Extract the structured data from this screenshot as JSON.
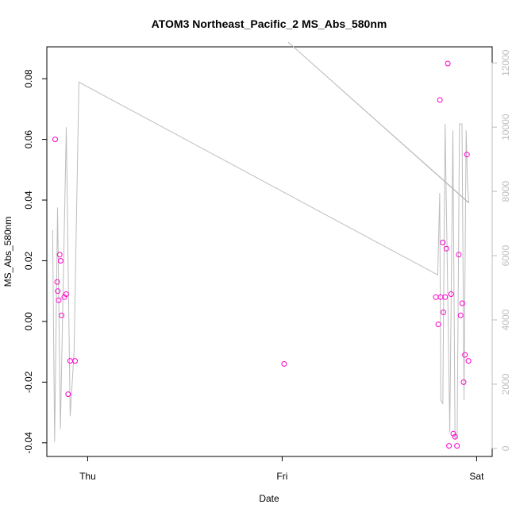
{
  "chart_data": {
    "type": "scatter",
    "title": "ATOM3 Northeast_Pacific_2 MS_Abs_580nm",
    "xlabel": "Date",
    "ylabel": "MS_Abs_580nm",
    "y2label": "",
    "x_ticks": [
      {
        "label": "Thu",
        "day": 1.0
      },
      {
        "label": "Fri",
        "day": 2.0
      },
      {
        "label": "Sat",
        "day": 3.0
      }
    ],
    "xlim": [
      0.79,
      3.08
    ],
    "ylim": [
      -0.0445,
      0.0905
    ],
    "y_ticks": [
      -0.04,
      -0.02,
      0.0,
      0.02,
      0.04,
      0.06,
      0.08
    ],
    "y2lim": [
      -250,
      12500
    ],
    "y2_ticks": [
      0,
      2000,
      4000,
      6000,
      8000,
      10000,
      12000
    ],
    "colors": {
      "points": "#ff00cc",
      "altitude_line": "#bdbdbd",
      "axis": "#000000"
    },
    "series": [
      {
        "kind": "points",
        "points": [
          [
            0.833,
            0.06
          ],
          [
            0.843,
            0.013
          ],
          [
            0.846,
            0.01
          ],
          [
            0.851,
            0.007
          ],
          [
            0.856,
            0.022
          ],
          [
            0.861,
            0.02
          ],
          [
            0.866,
            0.002
          ],
          [
            0.88,
            0.008
          ],
          [
            0.889,
            0.009
          ],
          [
            0.9,
            -0.024
          ],
          [
            0.91,
            -0.013
          ],
          [
            0.935,
            -0.013
          ],
          [
            2.01,
            -0.014
          ],
          [
            2.79,
            0.008
          ],
          [
            2.803,
            -0.001
          ],
          [
            2.811,
            0.073
          ],
          [
            2.815,
            0.008
          ],
          [
            2.826,
            0.026
          ],
          [
            2.829,
            0.003
          ],
          [
            2.838,
            0.008
          ],
          [
            2.845,
            0.024
          ],
          [
            2.852,
            0.085
          ],
          [
            2.858,
            -0.041
          ],
          [
            2.869,
            0.009
          ],
          [
            2.88,
            -0.037
          ],
          [
            2.889,
            -0.038
          ],
          [
            2.899,
            -0.041
          ],
          [
            2.908,
            0.022
          ],
          [
            2.918,
            0.002
          ],
          [
            2.926,
            0.006
          ],
          [
            2.933,
            -0.02
          ],
          [
            2.94,
            -0.011
          ],
          [
            2.95,
            0.055
          ],
          [
            2.958,
            -0.013
          ]
        ]
      },
      {
        "kind": "line",
        "axis": "y2",
        "points": [
          [
            0.82,
            6800
          ],
          [
            0.83,
            200
          ],
          [
            0.845,
            7500
          ],
          [
            0.86,
            600
          ],
          [
            0.89,
            10000
          ],
          [
            0.91,
            1000
          ],
          [
            0.93,
            3000
          ],
          [
            0.955,
            11400
          ],
          [
            2.8,
            5400
          ],
          [
            2.81,
            7950
          ],
          [
            2.816,
            1500
          ],
          [
            2.826,
            1400
          ],
          [
            2.838,
            10100
          ],
          [
            2.851,
            5000
          ],
          [
            2.862,
            500
          ],
          [
            2.878,
            9900
          ],
          [
            2.889,
            300
          ],
          [
            2.9,
            400
          ],
          [
            2.912,
            10100
          ],
          [
            2.925,
            10100
          ],
          [
            2.935,
            1500
          ],
          [
            2.946,
            9900
          ],
          [
            2.953,
            8200
          ],
          [
            2.96,
            7650
          ],
          [
            2.03,
            12650
          ],
          [
            2.957,
            7650
          ]
        ]
      }
    ],
    "grid": false,
    "legend": "none"
  }
}
